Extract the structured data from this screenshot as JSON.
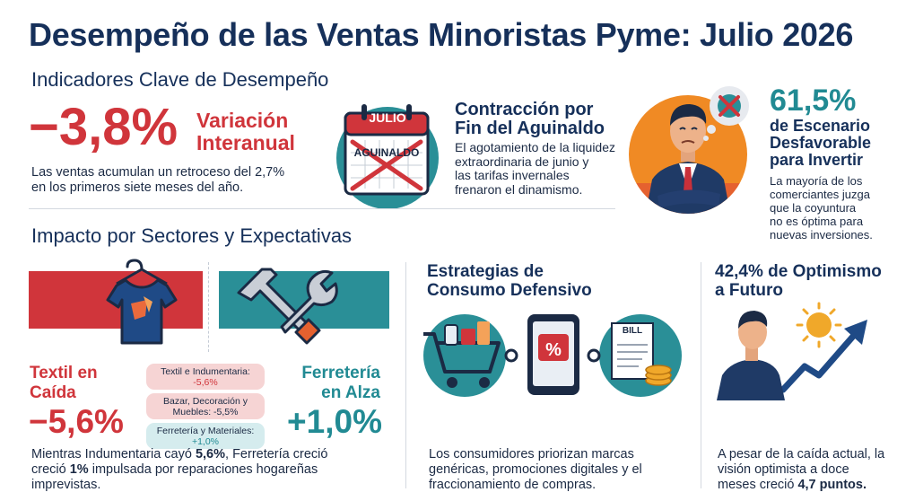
{
  "title": "Desempeño de las Ventas Minoristas Pyme: Julio 2026",
  "kpi_heading": "Indicadores Clave de Desempeño",
  "kpi1": {
    "value": "−3,8%",
    "label_line1": "Variación",
    "label_line2": "Interanual",
    "text_line1": "Las ventas acumulan un retroceso del 2,7%",
    "text_line2": "en los primeros siete meses del año."
  },
  "kpi2": {
    "calendar_month": "JULIO",
    "calendar_word": "AGUINALDO",
    "title_line1": "Contracción por",
    "title_line2": "Fin del Aguinaldo",
    "text_line1": "El agotamiento de la liquidez",
    "text_line2": "extraordinaria de junio y",
    "text_line3": "las tarifas invernales",
    "text_line4": "frenaron el dinamismo."
  },
  "kpi3": {
    "value": "61,5%",
    "title_line1": "de Escenario",
    "title_line2": "Desfavorable",
    "title_line3": "para Invertir",
    "text_line1": "La mayoría de los",
    "text_line2": "comerciantes juzga",
    "text_line3": "que la coyuntura",
    "text_line4": "no es óptima para",
    "text_line5": "nuevas inversiones."
  },
  "sectors_heading": "Impacto por Sectores y Expectativas",
  "sectors": {
    "textil_line1": "Textil en",
    "textil_line2": "Caída",
    "textil_value": "−5,6%",
    "ferreteria_line1": "Ferretería",
    "ferreteria_line2": "en Alza",
    "ferreteria_value": "+1,0%",
    "pills": [
      {
        "line1": "Textil e Indumentaria:",
        "line2": "-5,6%",
        "color": "#f6d4d4"
      },
      {
        "line1": "Bazar, Decoración y",
        "line2": "Muebles: -5,5%",
        "color": "#f6d4d4"
      },
      {
        "line1": "Ferretería y Materiales:",
        "line2": "+1,0%",
        "color": "#d5ecee"
      }
    ],
    "text_line1_pre": "Mientras Indumentaria cayó ",
    "text_line1_bold": "5,6%",
    "text_line1_post": ", Ferretería creció",
    "text_line2_pre": "creció ",
    "text_line2_bold": "1%",
    "text_line2_post": " impulsada por reparaciones hogareñas",
    "text_line3": "imprevistas."
  },
  "strategies": {
    "title_line1": "Estrategias de",
    "title_line2": "Consumo Defensivo",
    "phone_badge": "%",
    "bill_label": "BILL",
    "text_line1": "Los consumidores priorizan marcas",
    "text_line2": "genéricas, promociones digitales y el",
    "text_line3": "fraccionamiento de compras."
  },
  "optimism": {
    "title_line1": "42,4% de Optimismo",
    "title_line2": "a Futuro",
    "text_line1": "A pesar de la caída actual, la",
    "text_line2": "visión optimista a doce",
    "text_line3_pre": "meses creció ",
    "text_line3_bold": "4,7 puntos."
  },
  "colors": {
    "navy": "#16305a",
    "red": "#d0353b",
    "teal": "#218a93",
    "orange": "#f08a24"
  }
}
